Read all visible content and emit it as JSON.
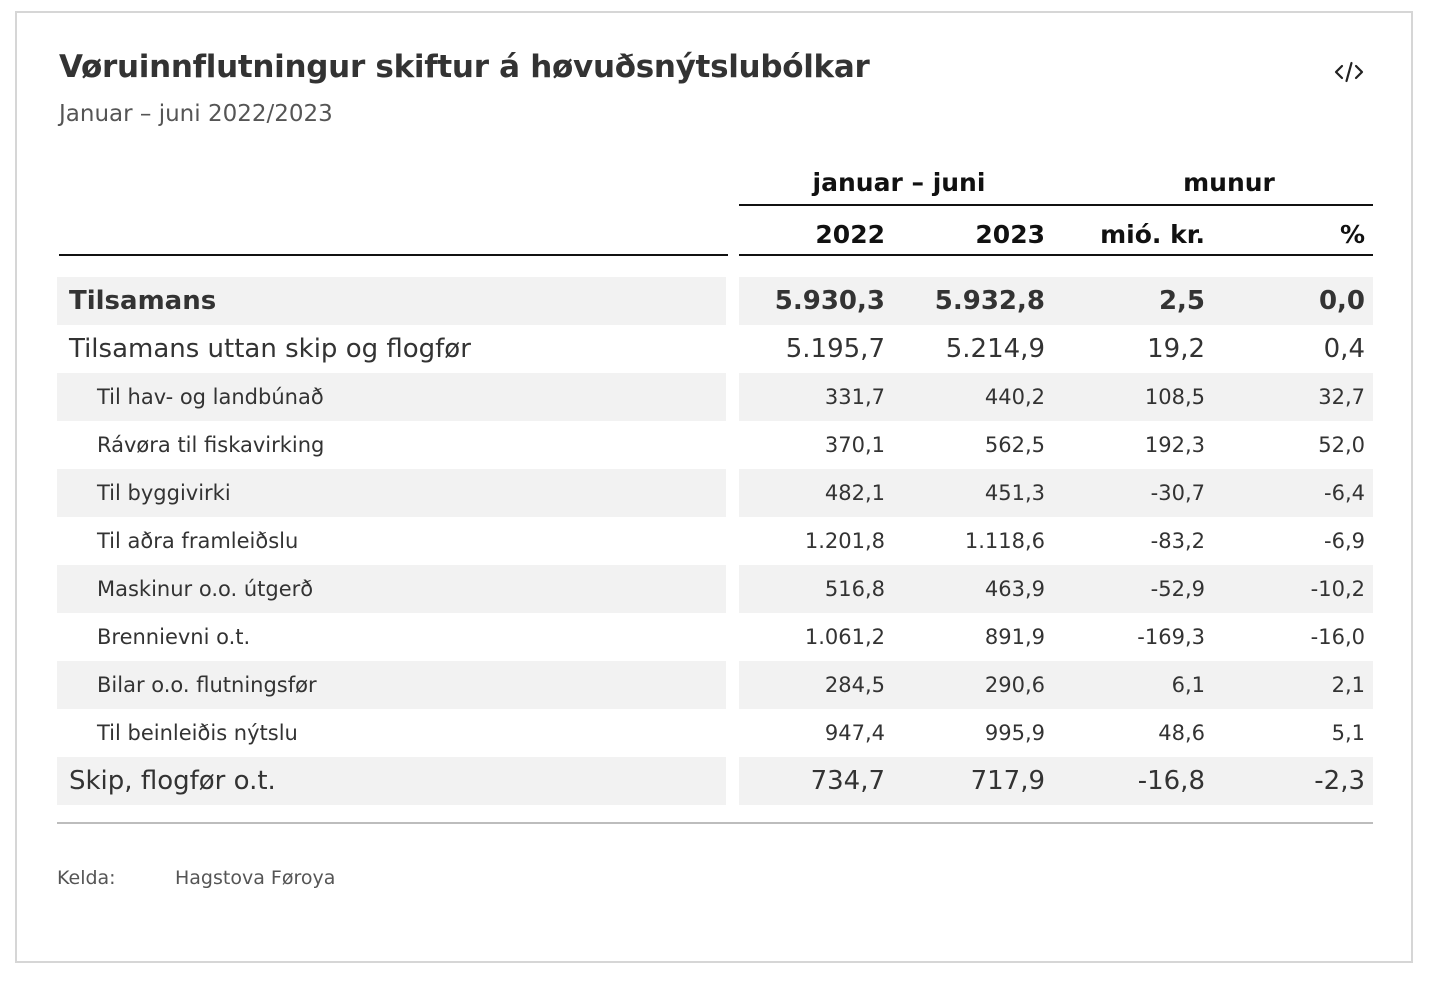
{
  "title": "Vøruinnflutningur skiftur á høvuðsnýtslubólkar",
  "subtitle": "Januar – juni 2022/2023",
  "embed_icon": "code-embed-icon",
  "header": {
    "group_period": "januar – juni",
    "group_diff": "munur",
    "col_2022": "2022",
    "col_2023": "2023",
    "col_diff_abs": "mió. kr.",
    "col_diff_pct": "%"
  },
  "rows": [
    {
      "label": "Tilsamans",
      "v2022": "5.930,3",
      "v2023": "5.932,8",
      "diff": "2,5",
      "pct": "0,0"
    },
    {
      "label": "Tilsamans uttan skip og flogfør",
      "v2022": "5.195,7",
      "v2023": "5.214,9",
      "diff": "19,2",
      "pct": "0,4"
    },
    {
      "label": "Til hav- og landbúnað",
      "v2022": "331,7",
      "v2023": "440,2",
      "diff": "108,5",
      "pct": "32,7"
    },
    {
      "label": "Rávøra til fiskavirking",
      "v2022": "370,1",
      "v2023": "562,5",
      "diff": "192,3",
      "pct": "52,0"
    },
    {
      "label": "Til byggivirki",
      "v2022": "482,1",
      "v2023": "451,3",
      "diff": "-30,7",
      "pct": "-6,4"
    },
    {
      "label": "Til aðra framleiðslu",
      "v2022": "1.201,8",
      "v2023": "1.118,6",
      "diff": "-83,2",
      "pct": "-6,9"
    },
    {
      "label": "Maskinur o.o. útgerð",
      "v2022": "516,8",
      "v2023": "463,9",
      "diff": "-52,9",
      "pct": "-10,2"
    },
    {
      "label": "Brennievni o.t.",
      "v2022": "1.061,2",
      "v2023": "891,9",
      "diff": "-169,3",
      "pct": "-16,0"
    },
    {
      "label": "Bilar o.o. flutningsfør",
      "v2022": "284,5",
      "v2023": "290,6",
      "diff": "6,1",
      "pct": "2,1"
    },
    {
      "label": "Til beinleiðis nýtslu",
      "v2022": "947,4",
      "v2023": "995,9",
      "diff": "48,6",
      "pct": "5,1"
    },
    {
      "label": "Skip, flogfør o.t.",
      "v2022": "734,7",
      "v2023": "717,9",
      "diff": "-16,8",
      "pct": "-2,3"
    }
  ],
  "source": {
    "label": "Kelda:",
    "value": "Hagstova Føroya"
  }
}
